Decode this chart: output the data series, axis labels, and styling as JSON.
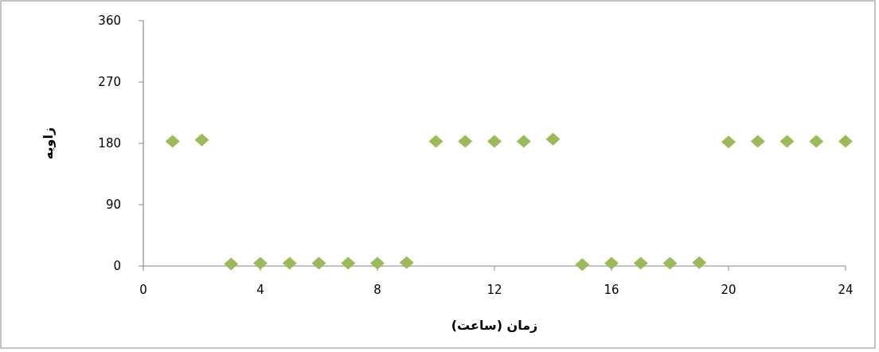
{
  "chart_data": {
    "type": "scatter",
    "xlabel": "زمان (ساعت)",
    "ylabel": "زاویه",
    "x": [
      1,
      2,
      3,
      4,
      5,
      6,
      7,
      8,
      9,
      10,
      11,
      12,
      13,
      14,
      15,
      16,
      17,
      18,
      19,
      20,
      21,
      22,
      23,
      24
    ],
    "series": [
      {
        "color": "#9bbb59",
        "values": [
          183,
          185,
          3,
          4,
          4,
          4,
          4,
          4,
          5,
          183,
          183,
          183,
          183,
          186,
          2,
          4,
          4,
          4,
          5,
          182,
          183,
          183,
          183,
          183
        ]
      }
    ],
    "marker": "diamond",
    "xlim": [
      0,
      24
    ],
    "xticks": [
      0,
      4,
      8,
      12,
      16,
      20,
      24
    ],
    "ylim": [
      0,
      360
    ],
    "yticks": [
      0,
      90,
      180,
      270,
      360
    ]
  }
}
